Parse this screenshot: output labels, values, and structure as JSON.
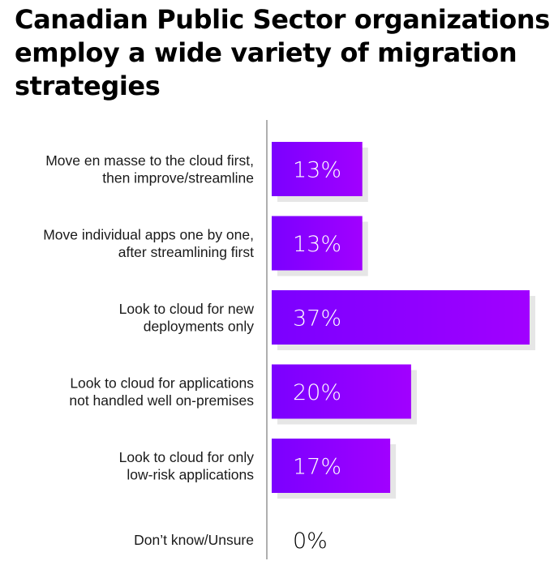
{
  "title": "Canadian Public Sector organizations employ a wide variety of migration strategies",
  "chart_data": {
    "type": "bar",
    "orientation": "horizontal",
    "title": "Canadian Public Sector organizations employ a wide variety of migration strategies",
    "categories": [
      [
        "Move en masse to the cloud first,",
        "then improve/streamline"
      ],
      [
        "Move individual apps one by one,",
        "after streamlining first"
      ],
      [
        "Look to cloud for new",
        "deployments only"
      ],
      [
        "Look to cloud for applications",
        "not handled well on-premises"
      ],
      [
        "Look to cloud for only",
        "low-risk applications"
      ],
      [
        "Don’t know/Unsure"
      ]
    ],
    "values": [
      13,
      13,
      37,
      20,
      17,
      0
    ],
    "value_labels": [
      "13%",
      "13%",
      "37%",
      "20%",
      "17%",
      "0%"
    ],
    "value_unit": "%",
    "xlim": [
      0,
      37
    ],
    "grid": false,
    "colors": {
      "bar_left": "#7b00ff",
      "bar_right": "#a100ff",
      "bar_shadow": "#e6e6e6",
      "axis": "#7a7a7a",
      "inside_label": "#ffffff",
      "outside_label": "#000000"
    }
  }
}
